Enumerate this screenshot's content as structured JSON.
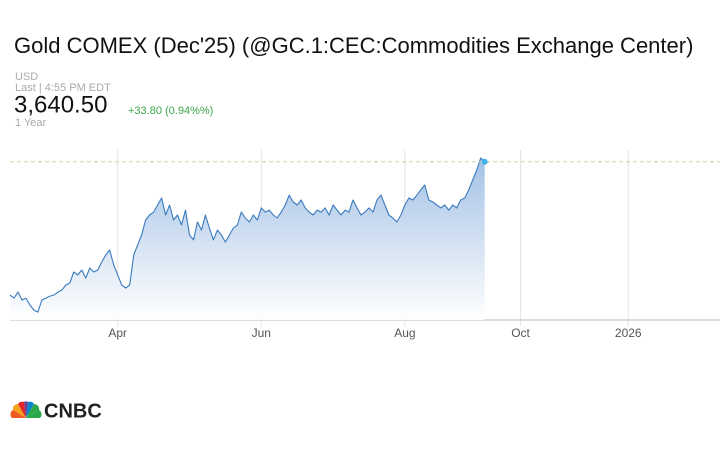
{
  "chart_data": {
    "type": "area",
    "title": "Gold COMEX (Dec'25) (@GC.1:CEC:Commodities Exchange Center)",
    "currency": "USD",
    "timestamp": "Last | 4:55 PM EDT",
    "price": {
      "value": 3640.5,
      "label": "3,640.50"
    },
    "change": "+33.80 (0.94%%)",
    "range": "1 Year",
    "logo": "CNBC",
    "color": "#3a7bbf",
    "ylim": [
      2840,
      3700
    ],
    "categories": [
      null,
      null,
      null,
      null,
      null,
      null,
      null,
      null,
      null,
      null,
      null,
      null,
      null,
      null,
      null,
      null,
      null,
      null,
      null,
      null,
      null,
      null,
      null,
      null,
      null,
      null,
      null,
      "Apr",
      null,
      null,
      null,
      null,
      null,
      null,
      null,
      null,
      null,
      null,
      null,
      null,
      null,
      null,
      null,
      null,
      null,
      null,
      null,
      null,
      null,
      null,
      null,
      null,
      null,
      null,
      null,
      null,
      null,
      null,
      null,
      null,
      null,
      null,
      null,
      "Jun",
      null,
      null,
      null,
      null,
      null,
      null,
      null,
      null,
      null,
      null,
      null,
      null,
      null,
      null,
      null,
      null,
      null,
      null,
      null,
      null,
      null,
      null,
      null,
      null,
      null,
      null,
      null,
      null,
      null,
      null,
      null,
      null,
      null,
      null,
      null,
      "Aug",
      null,
      null,
      null,
      null,
      null,
      null,
      null,
      null,
      null,
      null,
      null,
      null,
      null,
      null,
      null,
      null,
      null,
      null,
      null,
      null,
      null,
      null,
      null,
      null,
      null,
      null,
      null,
      null,
      "Oct",
      null,
      null,
      null,
      null,
      null,
      null,
      null,
      null,
      null,
      null,
      null,
      null,
      null,
      null,
      null,
      null,
      null,
      null,
      null,
      null,
      null,
      null,
      null,
      null,
      null,
      null,
      "2026",
      null,
      null,
      null,
      null,
      null,
      null,
      null,
      null,
      null,
      null,
      null,
      null,
      null,
      null,
      null,
      null,
      null,
      null,
      null,
      null,
      null,
      null
    ],
    "values": [
      2966,
      2951,
      2981,
      2941,
      2951,
      2916,
      2890,
      2880,
      2941,
      2951,
      2961,
      2966,
      2981,
      2992,
      3017,
      3027,
      3083,
      3068,
      3093,
      3052,
      3103,
      3083,
      3093,
      3133,
      3169,
      3194,
      3118,
      3068,
      3017,
      3002,
      3017,
      3169,
      3219,
      3270,
      3346,
      3371,
      3386,
      3422,
      3457,
      3371,
      3422,
      3346,
      3371,
      3321,
      3396,
      3270,
      3245,
      3336,
      3295,
      3371,
      3305,
      3245,
      3295,
      3270,
      3234,
      3270,
      3305,
      3321,
      3386,
      3356,
      3336,
      3371,
      3346,
      3407,
      3386,
      3396,
      3371,
      3356,
      3386,
      3422,
      3472,
      3437,
      3422,
      3447,
      3407,
      3386,
      3371,
      3396,
      3386,
      3407,
      3371,
      3422,
      3396,
      3371,
      3396,
      3386,
      3447,
      3407,
      3371,
      3386,
      3407,
      3386,
      3447,
      3472,
      3422,
      3371,
      3356,
      3336,
      3371,
      3422,
      3457,
      3447,
      3472,
      3498,
      3523,
      3447,
      3437,
      3422,
      3407,
      3422,
      3396,
      3422,
      3407,
      3447,
      3457,
      3498,
      3548,
      3599,
      3660,
      3640.5,
      null,
      null,
      null,
      null,
      null,
      null,
      null,
      null,
      null,
      null,
      null,
      null,
      null,
      null,
      null,
      null,
      null,
      null,
      null,
      null,
      null,
      null,
      null,
      null,
      null,
      null,
      null,
      null,
      null,
      null,
      null,
      null,
      null,
      null,
      null,
      null,
      null,
      null,
      null,
      null,
      null,
      null,
      null,
      null,
      null,
      null,
      null,
      null,
      null,
      null,
      null,
      null,
      null,
      null,
      null,
      null,
      null,
      null
    ]
  }
}
